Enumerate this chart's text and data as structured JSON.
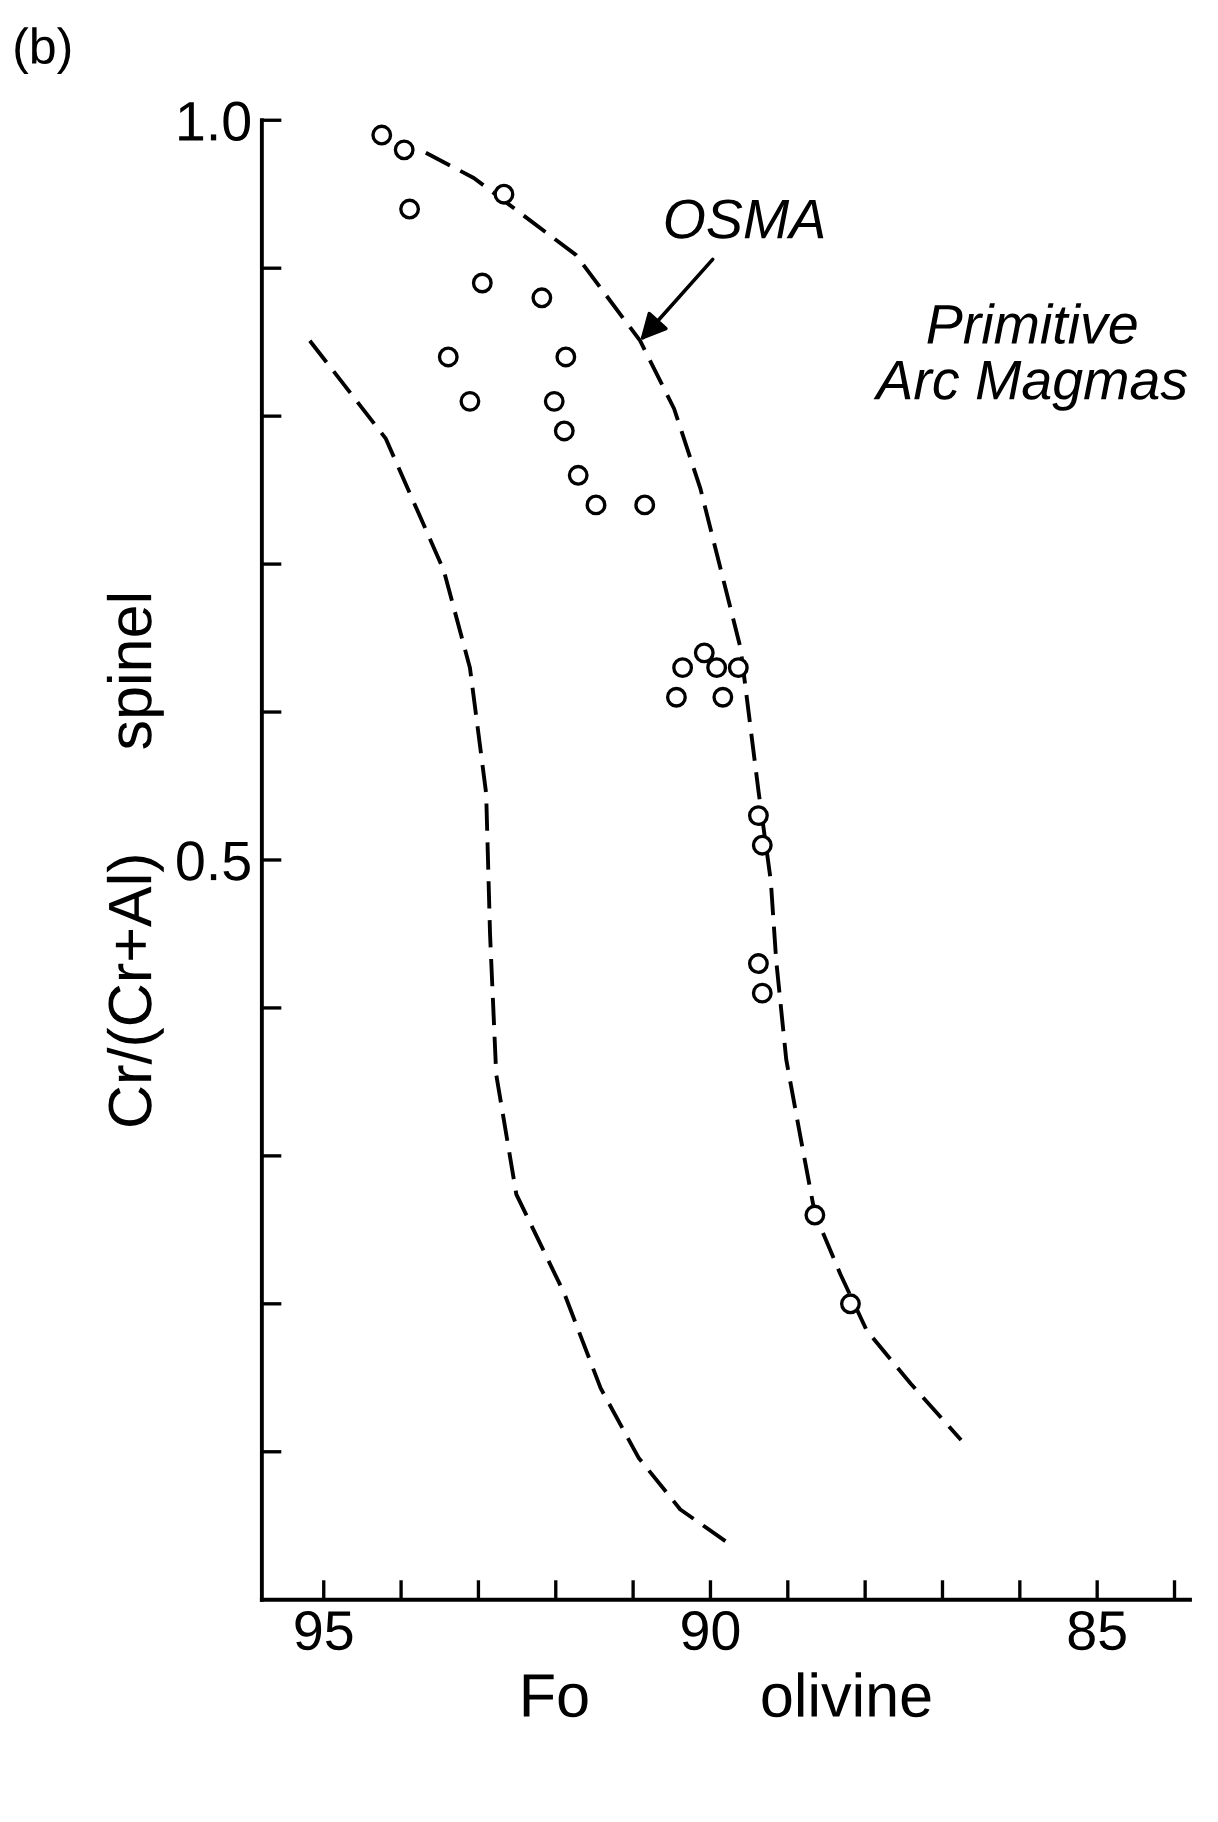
{
  "chart_data": {
    "type": "scatter",
    "xlabel": "Fo          olivine",
    "ylabel": "Cr/(Cr+Al)      spinel",
    "annotations": [
      "(b)",
      {
        "text": "OSMA",
        "x": 90.91,
        "y": 0.851
      },
      "Primitive\nArc Magmas"
    ],
    "series": [
      {
        "color": "#000000",
        "marker": "circle",
        "x": [
          94.25,
          93.96,
          93.89,
          92.67,
          92.95,
          92.18,
          93.39,
          91.87,
          93.11,
          92.02,
          91.89,
          91.71,
          91.48,
          90.85,
          90.36,
          90.08,
          89.92,
          89.64,
          89.84,
          90.44,
          89.38,
          89.33,
          89.38,
          89.33,
          88.65,
          88.19
        ],
        "values": [
          0.99,
          0.98,
          0.94,
          0.95,
          0.89,
          0.88,
          0.84,
          0.84,
          0.81,
          0.81,
          0.79,
          0.76,
          0.74,
          0.74,
          0.63,
          0.64,
          0.63,
          0.63,
          0.61,
          0.61,
          0.53,
          0.51,
          0.43,
          0.41,
          0.26,
          0.2
        ]
      },
      {
        "type": "line",
        "color": "#000000",
        "line_style": "dashed",
        "x": [
          93.68,
          93.06,
          91.74,
          90.91,
          90.47,
          90.13,
          89.61,
          89.38,
          89.22,
          89.15,
          89.02,
          88.83,
          88.65,
          88.32,
          87.98,
          87.41,
          86.76
        ],
        "values": [
          0.978,
          0.961,
          0.909,
          0.851,
          0.805,
          0.751,
          0.643,
          0.547,
          0.486,
          0.432,
          0.365,
          0.311,
          0.261,
          0.22,
          0.182,
          0.146,
          0.108
        ]
      },
      {
        "type": "line",
        "color": "#000000",
        "line_style": "dashed",
        "x": [
          95.18,
          94.2,
          93.45,
          93.11,
          92.9,
          92.85,
          92.77,
          92.51,
          91.89,
          91.42,
          90.93,
          90.39,
          89.79
        ],
        "values": [
          0.851,
          0.785,
          0.696,
          0.63,
          0.545,
          0.45,
          0.355,
          0.274,
          0.207,
          0.143,
          0.096,
          0.061,
          0.039
        ]
      }
    ],
    "xlim": [
      95.8,
      83.8
    ],
    "xticks": [
      95,
      {
        "value": 94,
        "label": null
      },
      {
        "value": 93,
        "label": null
      },
      {
        "value": 92,
        "label": null
      },
      {
        "value": 91,
        "label": null
      },
      90,
      {
        "value": 89,
        "label": null
      },
      {
        "value": 88,
        "label": null
      },
      {
        "value": 87,
        "label": null
      },
      {
        "value": 86,
        "label": null
      },
      85,
      {
        "value": 84,
        "label": null
      }
    ],
    "ylim": [
      0,
      1.0
    ],
    "yticks": [
      {
        "value": 0.1,
        "label": null
      },
      {
        "value": 0.2,
        "label": null
      },
      {
        "value": 0.3,
        "label": null
      },
      {
        "value": 0.4,
        "label": null
      },
      0.5,
      {
        "value": 0.6,
        "label": null
      },
      {
        "value": 0.7,
        "label": null
      },
      {
        "value": 0.8,
        "label": null
      },
      {
        "value": 0.9,
        "label": null
      },
      {
        "value": 1.0,
        "label": "1.0"
      }
    ],
    "grid": false,
    "legend": false
  }
}
